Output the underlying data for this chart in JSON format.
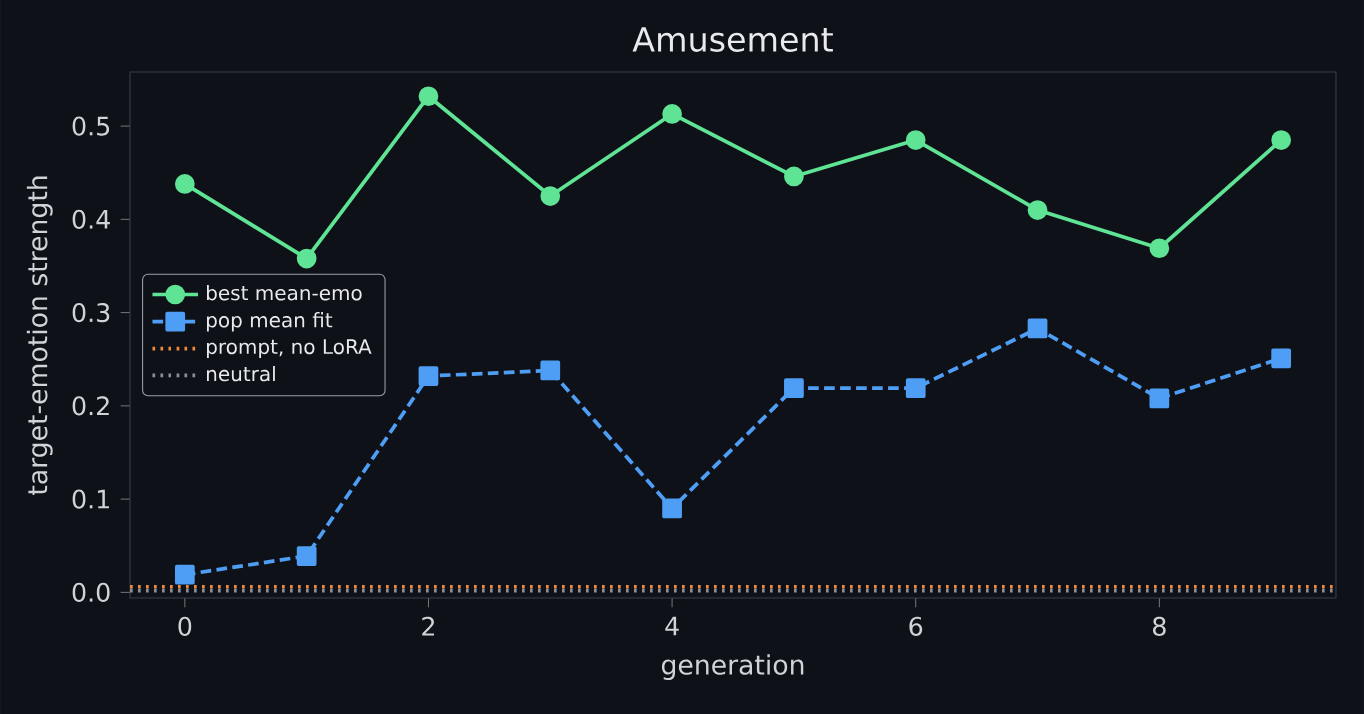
{
  "chart_data": {
    "type": "line",
    "title": "Amusement",
    "xlabel": "generation",
    "ylabel": "target-emotion strength",
    "x": [
      0,
      1,
      2,
      3,
      4,
      5,
      6,
      7,
      8,
      9
    ],
    "series": [
      {
        "name": "best mean-emo",
        "color": "#5fe395",
        "marker": "circle",
        "line_style": "solid",
        "values": [
          0.438,
          0.358,
          0.532,
          0.425,
          0.513,
          0.446,
          0.485,
          0.41,
          0.369,
          0.485
        ]
      },
      {
        "name": "pop mean fit",
        "color": "#4f9ef5",
        "marker": "square",
        "line_style": "dashed",
        "values": [
          0.019,
          0.039,
          0.232,
          0.238,
          0.09,
          0.219,
          0.219,
          0.283,
          0.208,
          0.251
        ]
      }
    ],
    "ref_lines": [
      {
        "axis": "y",
        "value": 0.006,
        "label": "prompt, no LoRA",
        "color": "#f08a3c",
        "line_style": "dotted"
      },
      {
        "axis": "y",
        "value": 0.002,
        "label": "neutral",
        "color": "#8a8f98",
        "line_style": "dotted"
      }
    ],
    "xlim": [
      -0.45,
      9.45
    ],
    "ylim": [
      -0.006,
      0.558
    ],
    "xticks": [
      0,
      2,
      4,
      6,
      8
    ],
    "yticks": [
      {
        "value": 0,
        "label": "0.0"
      },
      0.1,
      0.2,
      0.3,
      0.4,
      0.5
    ],
    "legend": "left",
    "grid": false
  }
}
